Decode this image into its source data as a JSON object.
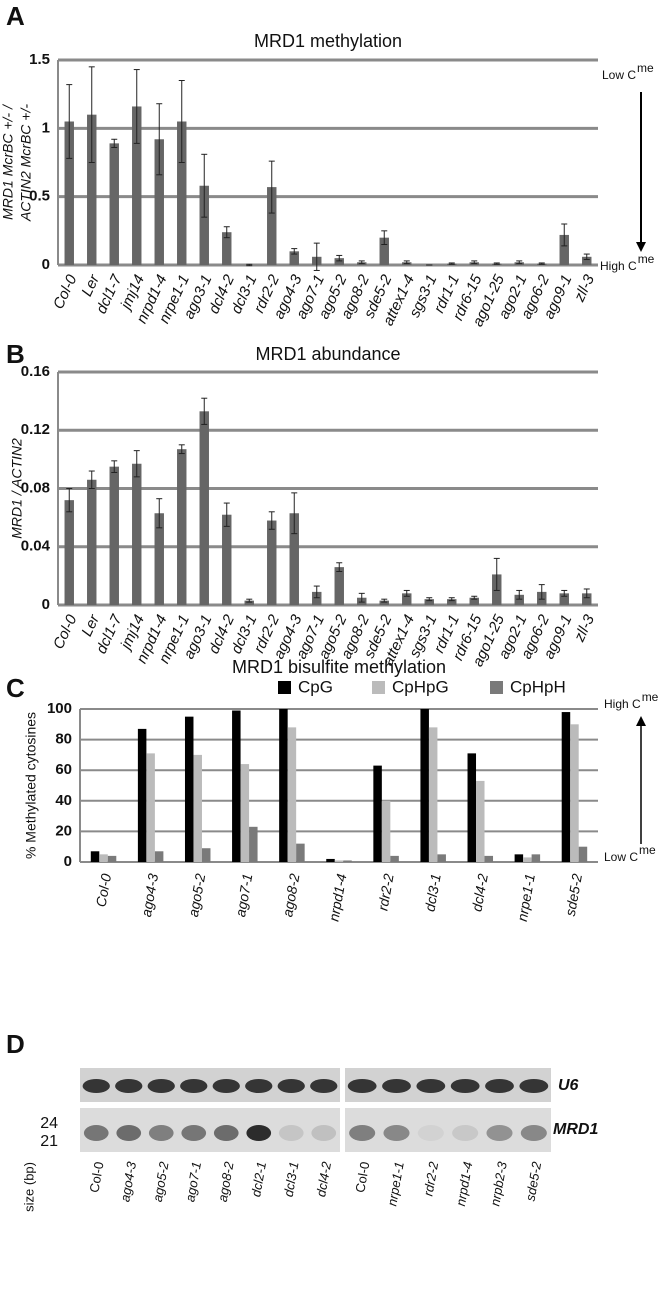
{
  "chart_data": [
    {
      "type": "bar",
      "panel": "A",
      "title": "MRD1 methylation",
      "ylabel": [
        "MRD1 McrBC +/- /",
        "ACTIN2 McrBC +/-"
      ],
      "categories": [
        "Col-0",
        "Ler",
        "dcl1-7",
        "jmj14",
        "nrpd1-4",
        "nrpe1-1",
        "ago3-1",
        "dcl4-2",
        "dcl3-1",
        "rdr2-2",
        "ago4-3",
        "ago7-1",
        "ago5-2",
        "ago8-2",
        "sde5-2",
        "attex1-4",
        "sgs3-1",
        "rdr1-1",
        "rdr6-15",
        "ago1-25",
        "ago2-1",
        "ago6-2",
        "ago9-1",
        "zll-3"
      ],
      "values": [
        1.05,
        1.1,
        0.89,
        1.16,
        0.92,
        1.05,
        0.58,
        0.24,
        0.0,
        0.57,
        0.1,
        0.06,
        0.05,
        0.02,
        0.2,
        0.02,
        0,
        0.01,
        0.02,
        0.01,
        0.02,
        0.01,
        0.22,
        0.06
      ],
      "errors": [
        0.27,
        0.35,
        0.03,
        0.27,
        0.26,
        0.3,
        0.23,
        0.04,
        0.005,
        0.19,
        0.02,
        0.1,
        0.02,
        0.01,
        0.05,
        0.01,
        0,
        0.005,
        0.01,
        0.005,
        0.01,
        0.005,
        0.08,
        0.02
      ],
      "color": "#666666",
      "ylim": [
        0,
        1.5
      ],
      "yticks": [
        0,
        0.5,
        1,
        1.5
      ],
      "grid": true,
      "annotations": [
        {
          "text": "Low C",
          "sup": "me"
        },
        {
          "text": "High C",
          "sup": "me"
        }
      ],
      "arrow": "down"
    },
    {
      "type": "bar",
      "panel": "B",
      "title": "MRD1 abundance",
      "ylabel": [
        "MRD1 / ACTIN2"
      ],
      "categories": [
        "Col-0",
        "Ler",
        "dcl1-7",
        "jmj14",
        "nrpd1-4",
        "nrpe1-1",
        "ago3-1",
        "dcl4-2",
        "dcl3-1",
        "rdr2-2",
        "ago4-3",
        "ago7-1",
        "ago5-2",
        "ago8-2",
        "sde5-2",
        "attex1-4",
        "sgs3-1",
        "rdr1-1",
        "rdr6-15",
        "ago1-25",
        "ago2-1",
        "ago6-2",
        "ago9-1",
        "zll-3"
      ],
      "values": [
        0.072,
        0.086,
        0.095,
        0.097,
        0.063,
        0.107,
        0.133,
        0.062,
        0.003,
        0.058,
        0.063,
        0.009,
        0.026,
        0.005,
        0.003,
        0.008,
        0.004,
        0.004,
        0.005,
        0.021,
        0.007,
        0.009,
        0.008,
        0.008
      ],
      "errors": [
        0.008,
        0.006,
        0.004,
        0.009,
        0.01,
        0.003,
        0.009,
        0.008,
        0.001,
        0.006,
        0.014,
        0.004,
        0.003,
        0.003,
        0.001,
        0.002,
        0.001,
        0.001,
        0.001,
        0.011,
        0.003,
        0.005,
        0.002,
        0.003
      ],
      "color": "#666666",
      "ylim": [
        0,
        0.16
      ],
      "yticks": [
        0,
        0.04,
        0.08,
        0.12,
        0.16
      ],
      "grid": true
    },
    {
      "type": "bar",
      "panel": "C",
      "title": "MRD1 bisulfite methylation",
      "ylabel": [
        "% Methylated cytosines"
      ],
      "categories": [
        "Col-0",
        "ago4-3",
        "ago5-2",
        "ago7-1",
        "ago8-2",
        "nrpd1-4",
        "rdr2-2",
        "dcl3-1",
        "dcl4-2",
        "nrpe1-1",
        "sde5-2"
      ],
      "series": [
        {
          "name": "CpG",
          "color": "#000000",
          "values": [
            7,
            87,
            95,
            99,
            100,
            2,
            63,
            100,
            71,
            5,
            98
          ]
        },
        {
          "name": "CpHpG",
          "color": "#bbbbbb",
          "values": [
            5,
            71,
            70,
            64,
            88,
            1,
            40,
            88,
            53,
            3,
            90
          ]
        },
        {
          "name": "CpHpH",
          "color": "#7a7a7a",
          "values": [
            4,
            7,
            9,
            23,
            12,
            1,
            4,
            5,
            4,
            5,
            10
          ]
        }
      ],
      "ylim": [
        0,
        100
      ],
      "yticks": [
        0,
        20,
        40,
        60,
        80,
        100
      ],
      "grid": true,
      "annotations": [
        {
          "text": "High C",
          "sup": "me"
        },
        {
          "text": "Low C",
          "sup": "me"
        }
      ],
      "arrow": "up"
    }
  ],
  "panel_d": {
    "panel": "D",
    "rows": [
      "U6",
      "MRD1"
    ],
    "sizes": [
      "24",
      "21"
    ],
    "size_label": "size (bp)",
    "lanes_left": [
      "Col-0",
      "ago4-3",
      "ago5-2",
      "ago7-1",
      "ago8-2",
      "dcl2-1",
      "dcl3-1",
      "dcl4-2"
    ],
    "lanes_right": [
      "Col-0",
      "nrpe1-1",
      "rdr2-2",
      "nrpd1-4",
      "nrpb2-3",
      "sde5-2"
    ]
  }
}
